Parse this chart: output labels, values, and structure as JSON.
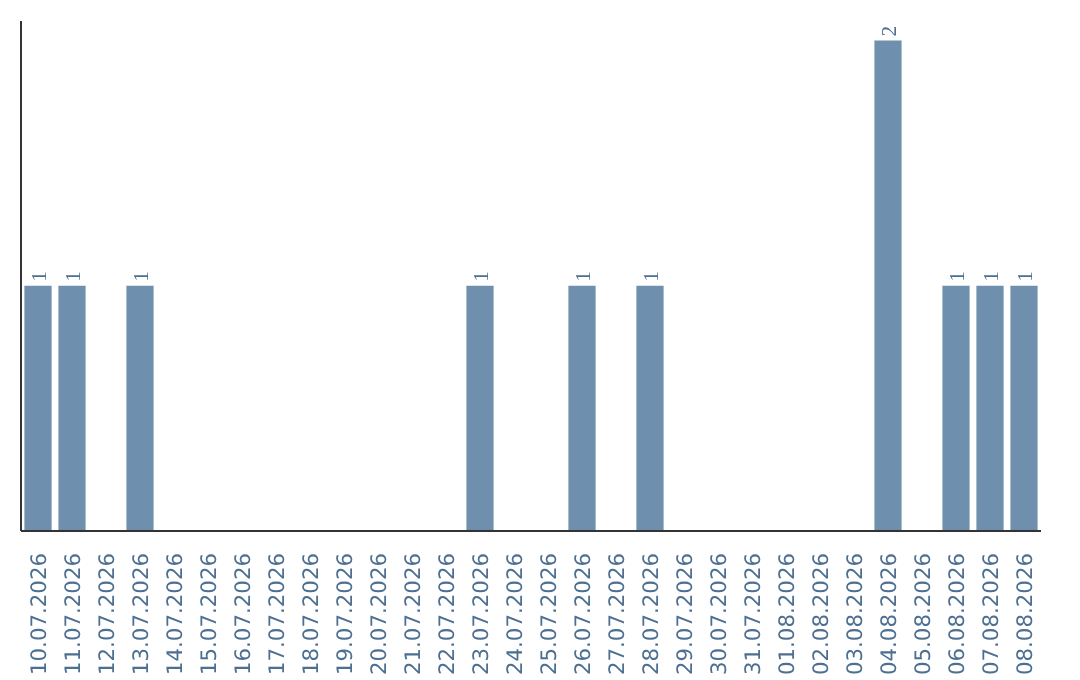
{
  "chart_data": {
    "type": "bar",
    "categories": [
      "10.07.2026",
      "11.07.2026",
      "12.07.2026",
      "13.07.2026",
      "14.07.2026",
      "15.07.2026",
      "16.07.2026",
      "17.07.2026",
      "18.07.2026",
      "19.07.2026",
      "20.07.2026",
      "21.07.2026",
      "22.07.2026",
      "23.07.2026",
      "24.07.2026",
      "25.07.2026",
      "26.07.2026",
      "27.07.2026",
      "28.07.2026",
      "29.07.2026",
      "30.07.2026",
      "31.07.2026",
      "01.08.2026",
      "02.08.2026",
      "03.08.2026",
      "04.08.2026",
      "05.08.2026",
      "06.08.2026",
      "07.08.2026",
      "08.08.2026"
    ],
    "values": [
      1,
      1,
      0,
      1,
      0,
      0,
      0,
      0,
      0,
      0,
      0,
      0,
      0,
      1,
      0,
      0,
      1,
      0,
      1,
      0,
      0,
      0,
      0,
      0,
      0,
      2,
      0,
      1,
      1,
      1
    ],
    "value_labels": [
      "1",
      "1",
      null,
      "1",
      null,
      null,
      null,
      null,
      null,
      null,
      null,
      null,
      null,
      "1",
      null,
      null,
      "1",
      null,
      "1",
      null,
      null,
      null,
      null,
      null,
      null,
      "2",
      null,
      "1",
      "1",
      "1"
    ],
    "color": "#6f8fae",
    "grid": false,
    "tick_labels": "x"
  }
}
